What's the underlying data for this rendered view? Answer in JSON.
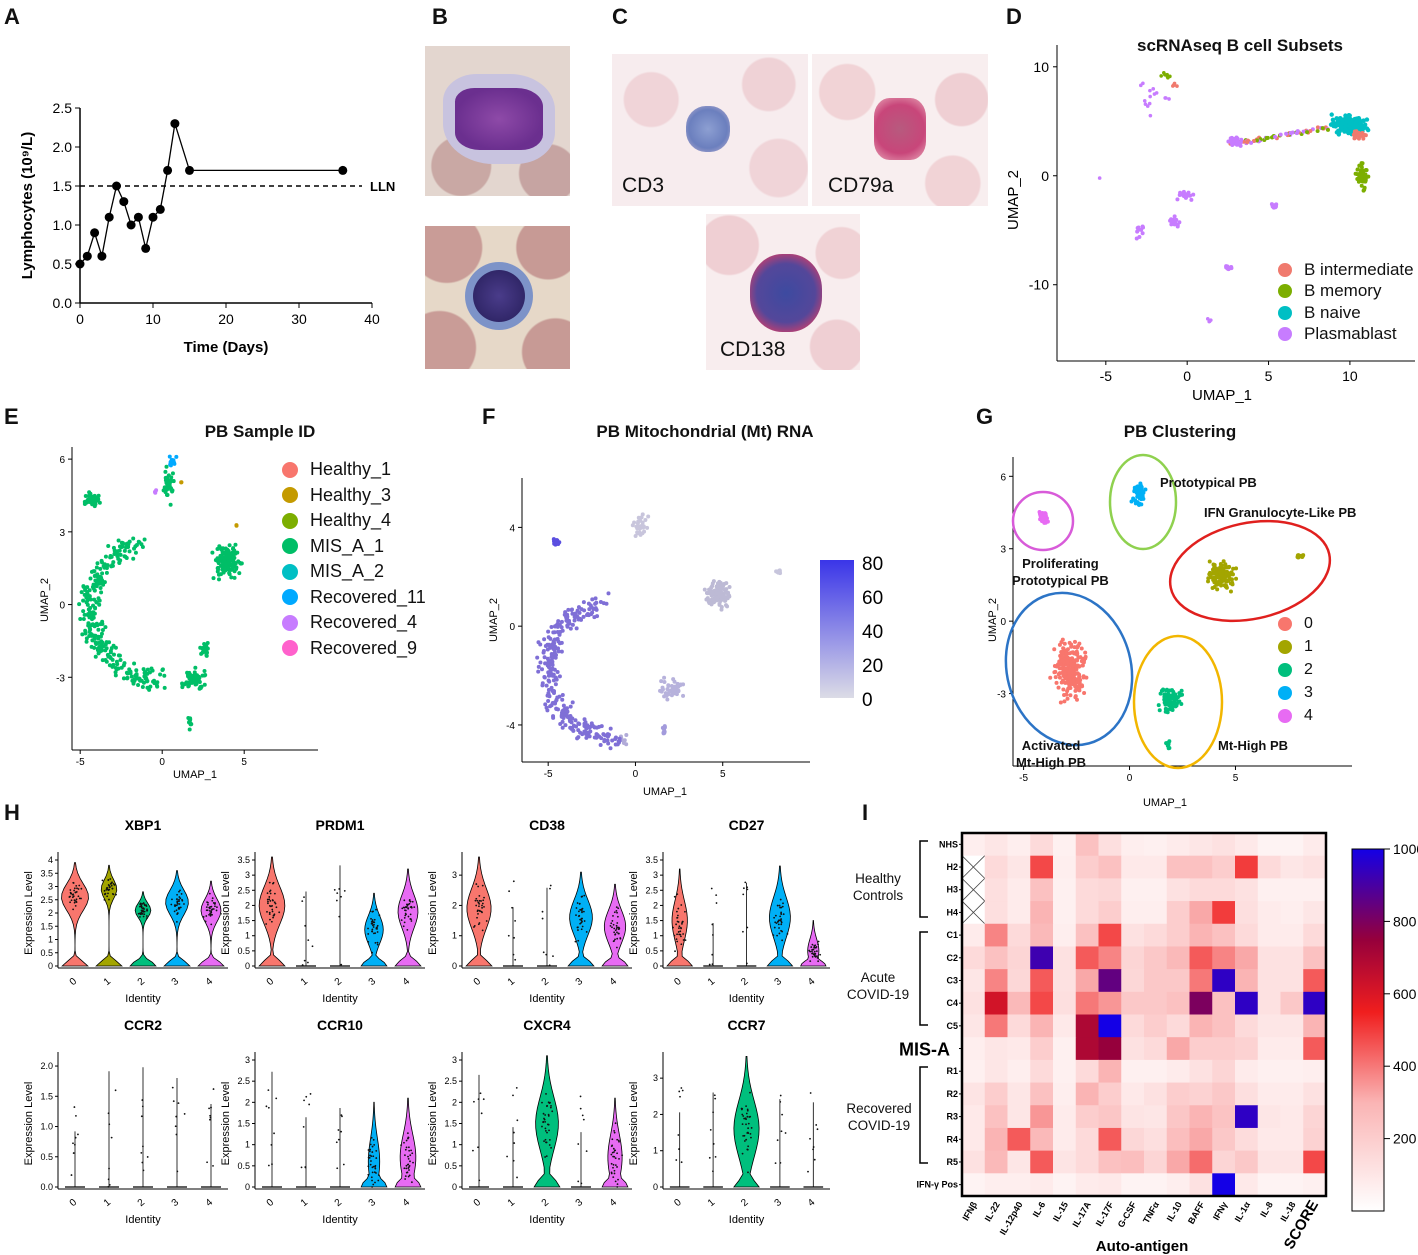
{
  "panels": {
    "A": {
      "label": "A",
      "xlabel": "Time (Days)",
      "ylabel": "Lymphocytes (10⁹/L)",
      "llnLabel": "LLN",
      "xticks": [
        "0",
        "10",
        "20",
        "30",
        "40"
      ],
      "yticks": [
        "0.0",
        "0.5",
        "1.0",
        "1.5",
        "2.0",
        "2.5"
      ]
    },
    "B": {
      "label": "B"
    },
    "C": {
      "label": "C",
      "stains": [
        "CD3",
        "CD79a",
        "CD138"
      ]
    },
    "D": {
      "label": "D",
      "title": "scRNAseq B cell Subsets",
      "xlabel": "UMAP_1",
      "ylabel": "UMAP_2",
      "xticks": [
        "-5",
        "0",
        "5",
        "10"
      ],
      "yticks": [
        "10",
        "0",
        "-10"
      ],
      "legend": [
        {
          "name": "B intermediate",
          "color": "#F07A6E"
        },
        {
          "name": "B memory",
          "color": "#7CAE00"
        },
        {
          "name": "B naive",
          "color": "#00BFC4"
        },
        {
          "name": "Plasmablast",
          "color": "#C77CFF"
        }
      ]
    },
    "E": {
      "label": "E",
      "title": "PB Sample ID",
      "xlabel": "UMAP_1",
      "ylabel": "UMAP_2",
      "xticks": [
        "-5",
        "0",
        "5"
      ],
      "yticks": [
        "6",
        "3",
        "0",
        "-3"
      ],
      "legend": [
        {
          "name": "Healthy_1",
          "color": "#F8766D"
        },
        {
          "name": "Healthy_3",
          "color": "#C49A00"
        },
        {
          "name": "Healthy_4",
          "color": "#7CAE00"
        },
        {
          "name": "MIS_A_1",
          "color": "#00BE67"
        },
        {
          "name": "MIS_A_2",
          "color": "#00BFC4"
        },
        {
          "name": "Recovered_11",
          "color": "#00A9FF"
        },
        {
          "name": "Recovered_4",
          "color": "#C77CFF"
        },
        {
          "name": "Recovered_9",
          "color": "#FF61CC"
        }
      ]
    },
    "F": {
      "label": "F",
      "title": "PB Mitochondrial (Mt) RNA",
      "xlabel": "UMAP_1",
      "ylabel": "UMAP_2",
      "xticks": [
        "-5",
        "0",
        "5"
      ],
      "yticks": [
        "4",
        "0",
        "-4"
      ],
      "scale": [
        "80",
        "60",
        "40",
        "20",
        "0"
      ]
    },
    "G": {
      "label": "G",
      "title": "PB Clustering",
      "xlabel": "UMAP_1",
      "ylabel": "UMAP_2",
      "xticks": [
        "-5",
        "0",
        "5"
      ],
      "yticks": [
        "6",
        "3",
        "0",
        "-3"
      ],
      "annotations": [
        "Prototypical PB",
        "IFN Granulocyte-Like PB",
        "Proliferating\nPrototypical PB",
        "Activated\nMt-High PB",
        "Mt-High PB"
      ],
      "legend": [
        {
          "name": "0",
          "color": "#F8766D"
        },
        {
          "name": "1",
          "color": "#A3A500"
        },
        {
          "name": "2",
          "color": "#00BF7D"
        },
        {
          "name": "3",
          "color": "#00B0F6"
        },
        {
          "name": "4",
          "color": "#E76BF3"
        }
      ]
    },
    "H": {
      "label": "H",
      "xlabel": "Identity",
      "ylabel": "Expression Level",
      "identities": [
        "0",
        "1",
        "2",
        "3",
        "4"
      ],
      "genes": [
        {
          "name": "XBP1",
          "yticks": [
            "0",
            "0.5",
            "1",
            "1.5",
            "2",
            "2.5",
            "3",
            "3.5",
            "4"
          ],
          "ymax": 4
        },
        {
          "name": "PRDM1",
          "yticks": [
            "0",
            "0.5",
            "1",
            "1.5",
            "2",
            "2.5",
            "3",
            "3.5"
          ],
          "ymax": 3.5
        },
        {
          "name": "CD38",
          "yticks": [
            "0",
            "1",
            "2",
            "3"
          ],
          "ymax": 3.5
        },
        {
          "name": "CD27",
          "yticks": [
            "0",
            "0.5",
            "1",
            "1.5",
            "2",
            "2.5",
            "3",
            "3.5"
          ],
          "ymax": 3.5
        },
        {
          "name": "CCR2",
          "yticks": [
            "0.0",
            "0.5",
            "1.0",
            "1.5",
            "2.0"
          ],
          "ymax": 2.1
        },
        {
          "name": "CCR10",
          "yticks": [
            "0",
            "0.5",
            "1",
            "1.5",
            "2",
            "2.5",
            "3"
          ],
          "ymax": 3
        },
        {
          "name": "CXCR4",
          "yticks": [
            "0",
            "0.5",
            "1",
            "1.5",
            "2",
            "2.5",
            "3"
          ],
          "ymax": 3
        },
        {
          "name": "CCR7",
          "yticks": [
            "0",
            "1",
            "2",
            "3"
          ],
          "ymax": 3.5
        }
      ]
    },
    "I": {
      "label": "I",
      "xlabel": "Auto-antigen",
      "rows": [
        "NHS",
        "H2",
        "H3",
        "H4",
        "C1",
        "C2",
        "C3",
        "C4",
        "C5",
        "MIS-A",
        "R1",
        "R2",
        "R3",
        "R4",
        "R5",
        "IFN-γ Pos"
      ],
      "cols": [
        "IFNβ",
        "IL-22",
        "IL-12p40",
        "IL-6",
        "IL-15",
        "IL-17A",
        "IL-17F",
        "G-CSF",
        "TNFα",
        "IL-10",
        "BAFF",
        "IFNγ",
        "IL-1α",
        "IL-8",
        "IL-18",
        "SCORE"
      ],
      "groups": [
        "Healthy\nControls",
        "Acute\nCOVID-19",
        "Recovered\nCOVID-19"
      ],
      "scale": [
        "1000",
        "800",
        "600",
        "400",
        "200"
      ]
    }
  },
  "chart_data": [
    {
      "type": "line",
      "panel": "A",
      "title": "",
      "xlabel": "Time (Days)",
      "ylabel": "Lymphocytes (10⁹/L)",
      "x": [
        0,
        1,
        2,
        3,
        4,
        5,
        6,
        7,
        8,
        9,
        10,
        11,
        12,
        13,
        15,
        36
      ],
      "y": [
        0.5,
        0.6,
        0.9,
        0.6,
        1.1,
        1.5,
        1.3,
        1.0,
        1.1,
        0.7,
        1.1,
        1.2,
        1.7,
        2.3,
        1.7,
        1.7
      ],
      "xlim": [
        0,
        40
      ],
      "ylim": [
        0,
        2.5
      ],
      "reference_line": {
        "y": 1.5,
        "label": "LLN"
      }
    },
    {
      "type": "heatmap",
      "panel": "I",
      "xlabel": "Auto-antigen",
      "zlim": [
        0,
        1000
      ],
      "rows": [
        "NHS",
        "H2",
        "H3",
        "H4",
        "C1",
        "C2",
        "C3",
        "C4",
        "C5",
        "MIS-A",
        "R1",
        "R2",
        "R3",
        "R4",
        "R5",
        "IFN-γ Pos"
      ],
      "cols": [
        "IFNβ",
        "IL-22",
        "IL-12p40",
        "IL-6",
        "IL-15",
        "IL-17A",
        "IL-17F",
        "G-CSF",
        "TNFα",
        "IL-10",
        "BAFF",
        "IFNγ",
        "IL-1α",
        "IL-8",
        "IL-18",
        "SCORE"
      ],
      "values": [
        [
          70,
          100,
          70,
          150,
          60,
          250,
          130,
          70,
          60,
          80,
          100,
          120,
          90,
          50,
          50,
          80
        ],
        [
          null,
          150,
          100,
          480,
          70,
          200,
          250,
          90,
          90,
          250,
          250,
          200,
          500,
          150,
          100,
          120
        ],
        [
          null,
          130,
          80,
          250,
          60,
          150,
          160,
          60,
          60,
          120,
          150,
          150,
          120,
          60,
          60,
          60
        ],
        [
          null,
          130,
          80,
          300,
          60,
          150,
          200,
          70,
          70,
          200,
          320,
          500,
          130,
          80,
          70,
          100
        ],
        [
          80,
          380,
          150,
          280,
          70,
          250,
          480,
          120,
          150,
          200,
          300,
          250,
          150,
          80,
          80,
          150
        ],
        [
          150,
          250,
          170,
          920,
          120,
          450,
          380,
          170,
          220,
          280,
          450,
          380,
          320,
          120,
          120,
          250
        ],
        [
          100,
          380,
          160,
          450,
          120,
          320,
          850,
          160,
          220,
          220,
          400,
          950,
          300,
          120,
          120,
          450
        ],
        [
          120,
          620,
          280,
          480,
          130,
          400,
          350,
          220,
          220,
          250,
          800,
          250,
          950,
          120,
          220,
          950
        ],
        [
          100,
          400,
          150,
          300,
          90,
          700,
          1000,
          150,
          200,
          150,
          300,
          250,
          150,
          100,
          100,
          300
        ],
        [
          70,
          100,
          90,
          200,
          60,
          700,
          750,
          120,
          150,
          320,
          200,
          200,
          180,
          80,
          80,
          450
        ],
        [
          60,
          100,
          70,
          150,
          60,
          150,
          300,
          60,
          60,
          80,
          120,
          170,
          80,
          60,
          60,
          70
        ],
        [
          110,
          200,
          100,
          250,
          70,
          300,
          200,
          90,
          120,
          200,
          180,
          220,
          130,
          80,
          80,
          120
        ],
        [
          90,
          250,
          100,
          350,
          80,
          200,
          230,
          110,
          100,
          230,
          300,
          240,
          950,
          100,
          90,
          170
        ],
        [
          90,
          300,
          450,
          280,
          80,
          150,
          450,
          160,
          130,
          260,
          320,
          220,
          140,
          90,
          90,
          180
        ],
        [
          120,
          280,
          100,
          450,
          110,
          150,
          250,
          260,
          170,
          320,
          420,
          170,
          220,
          110,
          110,
          480
        ],
        [
          50,
          70,
          70,
          80,
          50,
          80,
          90,
          50,
          50,
          70,
          120,
          1000,
          90,
          50,
          50,
          60
        ]
      ]
    }
  ]
}
